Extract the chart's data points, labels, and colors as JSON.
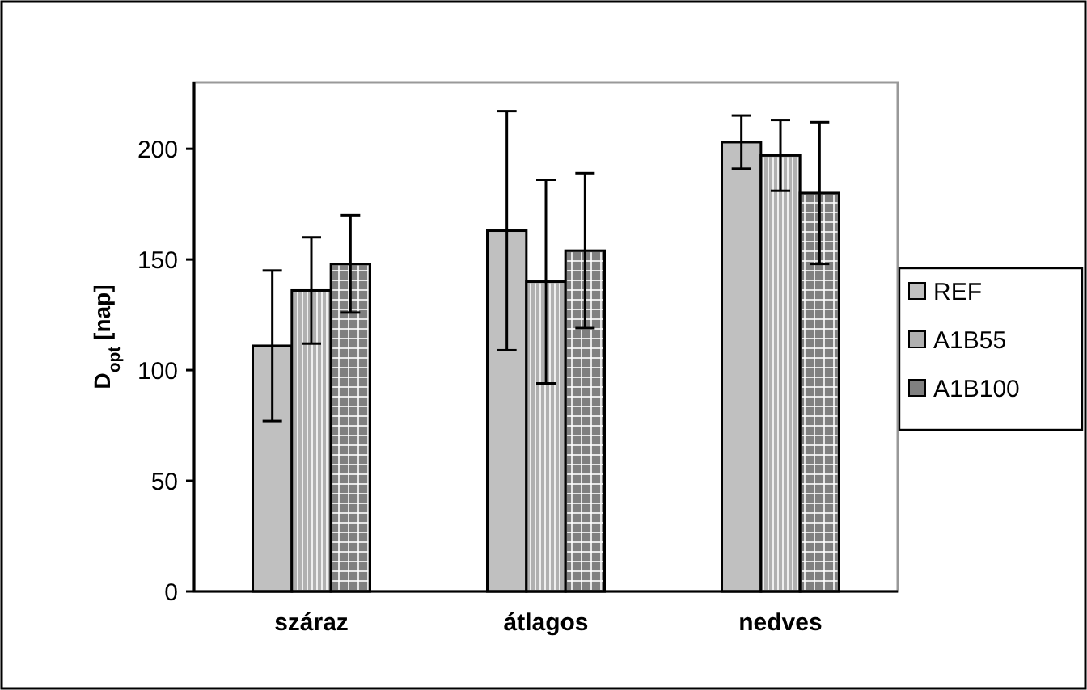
{
  "chart_data": {
    "type": "bar",
    "ylabel": "D$_{opt}$ [nap]",
    "categories": [
      "száraz",
      "átlagos",
      "nedves"
    ],
    "series": [
      {
        "name": "REF",
        "color": "#c0c0c0",
        "values": [
          111,
          163,
          203
        ],
        "errors": [
          34,
          54,
          12
        ]
      },
      {
        "name": "A1B55",
        "color": "#b0b0b0",
        "values": [
          136,
          140,
          197
        ],
        "errors": [
          24,
          46,
          16
        ]
      },
      {
        "name": "A1B100",
        "color": "#808080",
        "values": [
          148,
          154,
          180
        ],
        "errors": [
          22,
          35,
          32
        ]
      }
    ],
    "ylim": [
      0,
      230
    ],
    "yticks": [
      0,
      50,
      100,
      150,
      200
    ],
    "grid": false,
    "legend": "right"
  }
}
